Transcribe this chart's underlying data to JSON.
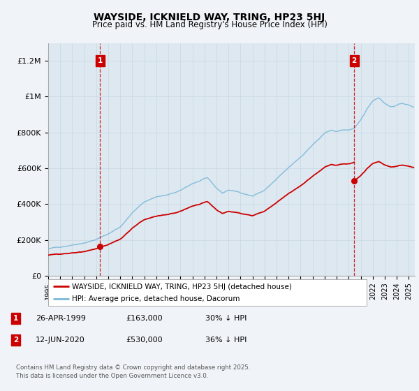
{
  "title": "WAYSIDE, ICKNIELD WAY, TRING, HP23 5HJ",
  "subtitle": "Price paid vs. HM Land Registry's House Price Index (HPI)",
  "hpi_color": "#7ab8d9",
  "price_color": "#cc0000",
  "vline_color": "#cc0000",
  "background_color": "#f0f4f8",
  "plot_bg_color": "#dde8f0",
  "ylim": [
    0,
    1300000
  ],
  "yticks": [
    0,
    200000,
    400000,
    600000,
    800000,
    1000000,
    1200000
  ],
  "ytick_labels": [
    "£0",
    "£200K",
    "£400K",
    "£600K",
    "£800K",
    "£1M",
    "£1.2M"
  ],
  "marker1_year": 1999.32,
  "marker1_price": 163000,
  "marker2_year": 2020.45,
  "marker2_price": 530000,
  "legend_label_red": "WAYSIDE, ICKNIELD WAY, TRING, HP23 5HJ (detached house)",
  "legend_label_blue": "HPI: Average price, detached house, Dacorum",
  "footnote": "Contains HM Land Registry data © Crown copyright and database right 2025.\nThis data is licensed under the Open Government Licence v3.0.",
  "table_rows": [
    {
      "num": "1",
      "date": "26-APR-1999",
      "amount": "£163,000",
      "note": "30% ↓ HPI"
    },
    {
      "num": "2",
      "date": "12-JUN-2020",
      "amount": "£530,000",
      "note": "36% ↓ HPI"
    }
  ]
}
